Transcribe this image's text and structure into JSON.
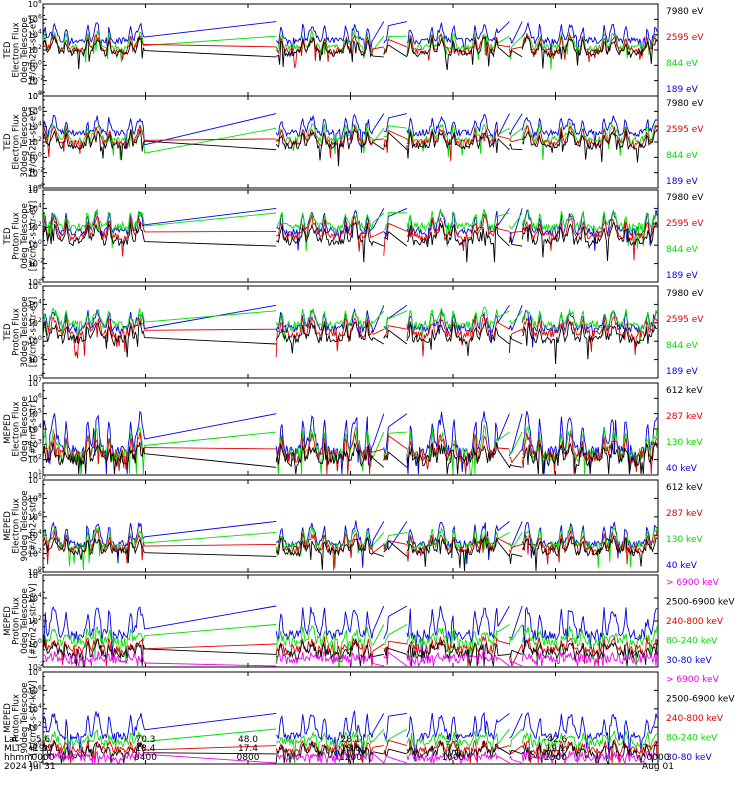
{
  "chart_data": [
    {
      "type": "line",
      "ylabel": [
        "TED",
        "Electron Flux",
        "0deg Telescope",
        "[#/cm2-s-str-eV]"
      ],
      "yscale": "log",
      "ylim_exp": [
        -4,
        8
      ],
      "ytick_exps": [
        -4,
        -2,
        0,
        2,
        4,
        6,
        8
      ],
      "series": [
        {
          "name": "7980 eV",
          "color": "#000000",
          "base": 1.6,
          "amp": 1.8,
          "ext": -3
        },
        {
          "name": "2595 eV",
          "color": "#e00000",
          "base": 1.9,
          "amp": 1.8,
          "ext": -1
        },
        {
          "name": "844 eV",
          "color": "#00dd00",
          "base": 2.3,
          "amp": 1.8,
          "ext": 1
        },
        {
          "name": "189 eV",
          "color": "#0000e0",
          "base": 3.2,
          "amp": 2.0,
          "ext": 3
        }
      ]
    },
    {
      "type": "line",
      "ylabel": [
        "TED",
        "Electron Flux",
        "30deg Telescope",
        "[#/cm2-s-str-eV]"
      ],
      "yscale": "log",
      "ylim_exp": [
        -4,
        8
      ],
      "ytick_exps": [
        -4,
        -2,
        0,
        2,
        4,
        6,
        8
      ],
      "series": [
        {
          "name": "7980 eV",
          "color": "#000000",
          "base": 1.5,
          "amp": 1.8,
          "ext": -3
        },
        {
          "name": "2595 eV",
          "color": "#e00000",
          "base": 1.9,
          "amp": 1.8,
          "ext": -1
        },
        {
          "name": "844 eV",
          "color": "#00dd00",
          "base": 2.3,
          "amp": 1.9,
          "ext": 1
        },
        {
          "name": "189 eV",
          "color": "#0000e0",
          "base": 3.2,
          "amp": 2.0,
          "ext": 3
        }
      ]
    },
    {
      "type": "line",
      "ylabel": [
        "TED",
        "Proton Flux",
        "0deg Telescope",
        "[#/cm2-s-str-eV]"
      ],
      "yscale": "log",
      "ylim_exp": [
        -4,
        6
      ],
      "ytick_exps": [
        -4,
        -2,
        0,
        2,
        4,
        6
      ],
      "series": [
        {
          "name": "7980 eV",
          "color": "#000000",
          "base": 0.4,
          "amp": 1.8,
          "ext": -3
        },
        {
          "name": "2595 eV",
          "color": "#e00000",
          "base": 1.0,
          "amp": 1.8,
          "ext": -1
        },
        {
          "name": "844 eV",
          "color": "#00dd00",
          "base": 2.0,
          "amp": 1.5,
          "ext": 1
        },
        {
          "name": "189 eV",
          "color": "#0000e0",
          "base": 1.5,
          "amp": 2.0,
          "ext": 3
        }
      ]
    },
    {
      "type": "line",
      "ylabel": [
        "TED",
        "Proton Flux",
        "30deg Telescope",
        "[#/cm2-s-str-eV]"
      ],
      "yscale": "log",
      "ylim_exp": [
        -4,
        6
      ],
      "ytick_exps": [
        -4,
        -2,
        0,
        2,
        4,
        6
      ],
      "series": [
        {
          "name": "7980 eV",
          "color": "#000000",
          "base": 0.2,
          "amp": 1.6,
          "ext": -3
        },
        {
          "name": "2595 eV",
          "color": "#e00000",
          "base": 0.8,
          "amp": 1.6,
          "ext": -1
        },
        {
          "name": "844 eV",
          "color": "#00dd00",
          "base": 1.8,
          "amp": 1.5,
          "ext": 1
        },
        {
          "name": "189 eV",
          "color": "#0000e0",
          "base": 1.4,
          "amp": 1.8,
          "ext": 3
        }
      ]
    },
    {
      "type": "line",
      "ylabel": [
        "MEPED",
        "Electron Flux",
        "0deg Telescope",
        "[#/cm2-s-str]"
      ],
      "yscale": "log",
      "ylim_exp": [
        1,
        7
      ],
      "ytick_exps": [
        1,
        2,
        3,
        4,
        5,
        6,
        7
      ],
      "series": [
        {
          "name": "612 keV",
          "color": "#000000",
          "base": 2.0,
          "amp": 0.8,
          "ext": -3
        },
        {
          "name": "287 keV",
          "color": "#e00000",
          "base": 2.2,
          "amp": 1.2,
          "ext": -1
        },
        {
          "name": "130 keV",
          "color": "#00dd00",
          "base": 2.3,
          "amp": 1.5,
          "ext": 1
        },
        {
          "name": "40 keV",
          "color": "#0000e0",
          "base": 2.5,
          "amp": 2.3,
          "ext": 3
        }
      ]
    },
    {
      "type": "line",
      "ylabel": [
        "MEPED",
        "Electron Flux",
        "90deg Telescope",
        "[#/cm2-s-str]"
      ],
      "yscale": "log",
      "ylim_exp": [
        0,
        10
      ],
      "ytick_exps": [
        0,
        2,
        4,
        6,
        8,
        10
      ],
      "series": [
        {
          "name": "612 keV",
          "color": "#000000",
          "base": 2.2,
          "amp": 1.3,
          "ext": -3
        },
        {
          "name": "287 keV",
          "color": "#e00000",
          "base": 2.5,
          "amp": 1.6,
          "ext": -1
        },
        {
          "name": "130 keV",
          "color": "#00dd00",
          "base": 2.8,
          "amp": 1.8,
          "ext": 1
        },
        {
          "name": "40 keV",
          "color": "#0000e0",
          "base": 3.0,
          "amp": 2.2,
          "ext": 3
        }
      ]
    },
    {
      "type": "line",
      "ylabel": [
        "MEPED",
        "Proton Flux",
        "0deg Telescope",
        "[#/cm2-s-str-keV]"
      ],
      "yscale": "log",
      "ylim_exp": [
        -2,
        6
      ],
      "ytick_exps": [
        -2,
        0,
        2,
        4,
        6
      ],
      "series": [
        {
          "name": "> 6900 keV",
          "color": "#ee00ee",
          "base": -1.3,
          "amp": 0.3,
          "ext": -4
        },
        {
          "name": "2500-6900 keV",
          "color": "#000000",
          "base": -0.9,
          "amp": 1.0,
          "ext": -2
        },
        {
          "name": "240-800 keV",
          "color": "#e00000",
          "base": -0.5,
          "amp": 0.8,
          "ext": -1
        },
        {
          "name": "80-240 keV",
          "color": "#00dd00",
          "base": 0.2,
          "amp": 1.0,
          "ext": 1
        },
        {
          "name": "30-80 keV",
          "color": "#0000e0",
          "base": 0.8,
          "amp": 2.2,
          "ext": 3
        }
      ]
    },
    {
      "type": "line",
      "ylabel": [
        "MEPED",
        "Proton Flux",
        "90deg Telescope",
        "[#/cm2-s-str-keV]"
      ],
      "yscale": "log",
      "ylim_exp": [
        -2,
        8
      ],
      "ytick_exps": [
        -2,
        0,
        2,
        4,
        6,
        8
      ],
      "series": [
        {
          "name": "> 6900 keV",
          "color": "#ee00ee",
          "base": -1.3,
          "amp": 0.3,
          "ext": -4
        },
        {
          "name": "2500-6900 keV",
          "color": "#000000",
          "base": -0.9,
          "amp": 1.0,
          "ext": -2
        },
        {
          "name": "240-800 keV",
          "color": "#e00000",
          "base": -0.5,
          "amp": 0.8,
          "ext": -1
        },
        {
          "name": "80-240 keV",
          "color": "#00dd00",
          "base": 0.3,
          "amp": 1.0,
          "ext": 1
        },
        {
          "name": "30-80 keV",
          "color": "#0000e0",
          "base": 1.0,
          "amp": 2.4,
          "ext": 3
        }
      ]
    }
  ],
  "x_axis": {
    "row_labels": [
      "Lat",
      "MLT",
      "hhmm",
      "2024"
    ],
    "ticks": [
      {
        "t": 0,
        "lat": "5.6",
        "mlt": "19.5",
        "hhmm": "0000",
        "date": "Jul 31"
      },
      {
        "t": 4,
        "lat": "70.3",
        "mlt": "13.4",
        "hhmm": "0400",
        "date": ""
      },
      {
        "t": 8,
        "lat": "48.0",
        "mlt": "17.4",
        "hhmm": "0800",
        "date": ""
      },
      {
        "t": 12,
        "lat": "28.1",
        "mlt": "18.6",
        "hhmm": "1200",
        "date": ""
      },
      {
        "t": 16,
        "lat": "9.7",
        "mlt": "7.2",
        "hhmm": "1600",
        "date": ""
      },
      {
        "t": 20,
        "lat": "-42.6",
        "mlt": "19.1",
        "hhmm": "2000",
        "date": ""
      },
      {
        "t": 24,
        "lat": "",
        "mlt": "",
        "hhmm": "0000",
        "date": "Aug 01"
      }
    ],
    "range_hours": [
      0,
      24
    ],
    "data_segments_hours": [
      [
        0,
        4.0
      ],
      [
        9.1,
        12.9
      ],
      [
        13.3,
        13.5
      ],
      [
        14.2,
        17.8
      ],
      [
        18.2,
        18.3
      ],
      [
        18.7,
        24
      ]
    ],
    "orbit_period_hours": 1.68
  }
}
